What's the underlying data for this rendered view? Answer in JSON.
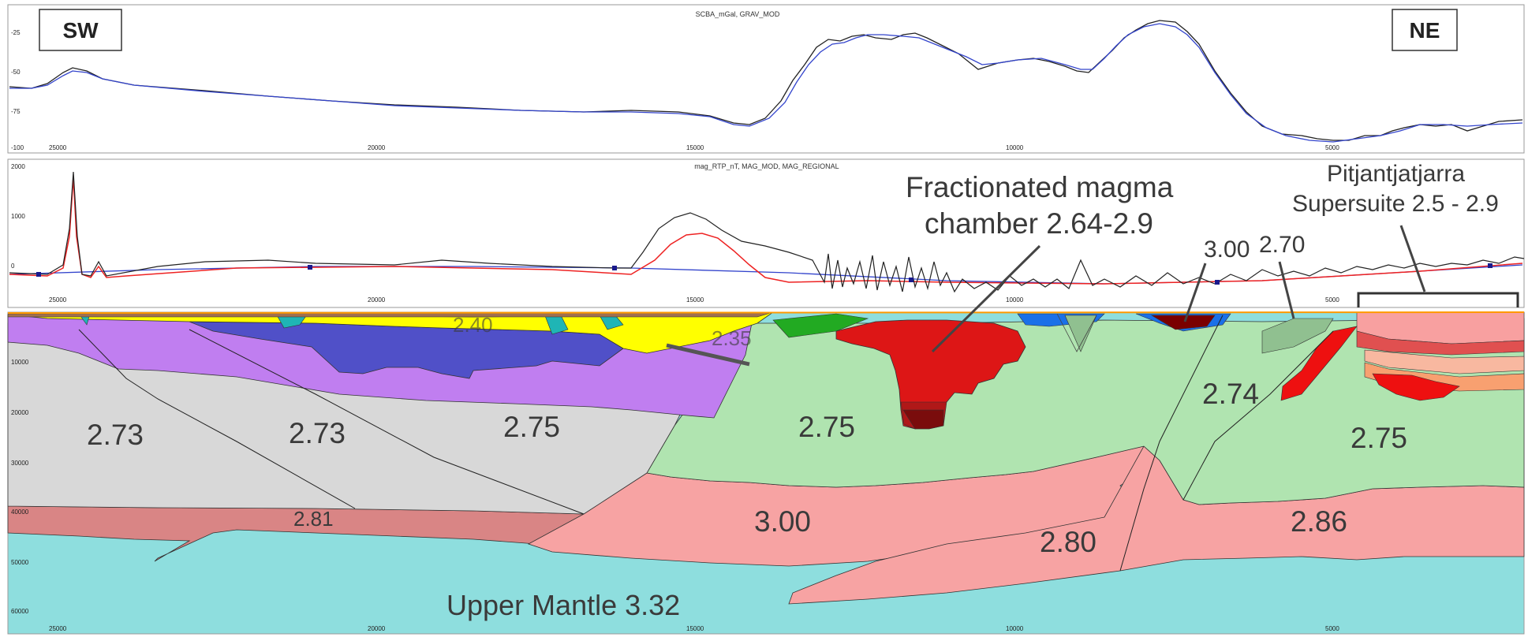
{
  "direction_labels": {
    "left": "SW",
    "right": "NE"
  },
  "panels": {
    "gravity": {
      "title": "SCBA_mGal, GRAV_MOD",
      "y_ticks": [
        "-25",
        "-50",
        "-75",
        "-100"
      ],
      "x_ticks": [
        "25000",
        "20000",
        "15000",
        "10000",
        "5000"
      ],
      "series_colors": {
        "observed": "#222222",
        "model": "#3344cc"
      }
    },
    "magnetic": {
      "title": "mag_RTP_nT, MAG_MOD, MAG_REGIONAL",
      "y_ticks": [
        "2000",
        "1000",
        "0"
      ],
      "x_ticks": [
        "25000",
        "20000",
        "15000",
        "10000",
        "5000"
      ],
      "series_colors": {
        "observed": "#222222",
        "model": "#ee2222",
        "regional": "#3344cc"
      }
    },
    "section": {
      "depth_ticks": [
        "10000",
        "20000",
        "30000",
        "40000",
        "50000",
        "60000"
      ],
      "x_ticks": [
        "25000",
        "20000",
        "15000",
        "10000",
        "5000"
      ]
    }
  },
  "density_labels": {
    "d1": "2.73",
    "d2": "2.73",
    "d3": "2.75",
    "d4": "2.75",
    "d5": "2.74",
    "d6": "2.75",
    "d7": "2.81",
    "d8": "3.00",
    "d9": "2.80",
    "d10": "2.86",
    "d11": "2.40",
    "d12": "2.35"
  },
  "annotations": {
    "magma_line1": "Fractionated magma",
    "magma_line2": "chamber 2.64-2.9",
    "pitj_line1": "Pitjantjatjarra",
    "pitj_line2": "Supersuite 2.5 - 2.9",
    "label_300": "3.00",
    "label_270": "2.70",
    "mantle": "Upper Mantle 3.32"
  },
  "colors": {
    "mantle": "#8edede",
    "lower_pink": "#f7a3a3",
    "lower_rose": "#d98585",
    "green": "#b0e4b0",
    "grey": "#d8d8d8",
    "purple": "#c07ef0",
    "blue": "#5050c8",
    "yellow": "#ffff00",
    "red": "#e01010"
  }
}
